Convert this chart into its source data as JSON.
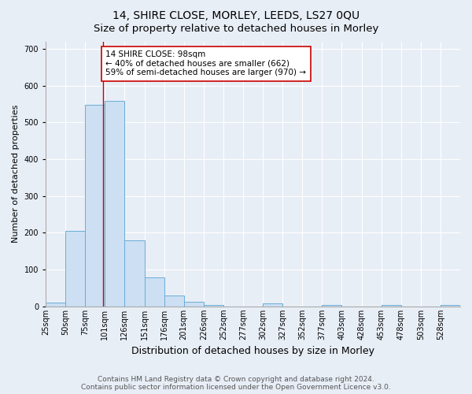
{
  "title": "14, SHIRE CLOSE, MORLEY, LEEDS, LS27 0QU",
  "subtitle": "Size of property relative to detached houses in Morley",
  "xlabel": "Distribution of detached houses by size in Morley",
  "ylabel": "Number of detached properties",
  "bin_left_edges": [
    25,
    50,
    75,
    100,
    125,
    150,
    175,
    200,
    225,
    250,
    275,
    300,
    325,
    350,
    375,
    400,
    425,
    450,
    475,
    500,
    525
  ],
  "bar_heights": [
    10,
    205,
    548,
    558,
    180,
    78,
    30,
    12,
    5,
    0,
    0,
    8,
    0,
    0,
    5,
    0,
    0,
    3,
    0,
    0,
    3
  ],
  "bar_color": "#ccdff3",
  "bar_edge_color": "#6aaed6",
  "vline_x": 98,
  "vline_color": "#cc0000",
  "annotation_text": "14 SHIRE CLOSE: 98sqm\n← 40% of detached houses are smaller (662)\n59% of semi-detached houses are larger (970) →",
  "annotation_box_facecolor": "#ffffff",
  "annotation_box_edgecolor": "#cc0000",
  "ylim": [
    0,
    720
  ],
  "yticks": [
    0,
    100,
    200,
    300,
    400,
    500,
    600,
    700
  ],
  "xtick_labels": [
    "25sqm",
    "50sqm",
    "75sqm",
    "101sqm",
    "126sqm",
    "151sqm",
    "176sqm",
    "201sqm",
    "226sqm",
    "252sqm",
    "277sqm",
    "302sqm",
    "327sqm",
    "352sqm",
    "377sqm",
    "403sqm",
    "428sqm",
    "453sqm",
    "478sqm",
    "503sqm",
    "528sqm"
  ],
  "footer_text": "Contains HM Land Registry data © Crown copyright and database right 2024.\nContains public sector information licensed under the Open Government Licence v3.0.",
  "bg_color": "#e8eef6",
  "plot_bg_color": "#e8eef6",
  "title_fontsize": 10,
  "subtitle_fontsize": 9.5,
  "ylabel_fontsize": 8,
  "xlabel_fontsize": 9,
  "tick_fontsize": 7,
  "footer_fontsize": 6.5,
  "annotation_fontsize": 7.5
}
